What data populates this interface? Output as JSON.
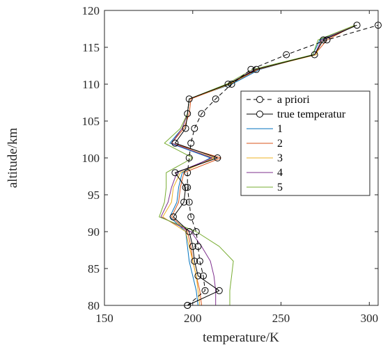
{
  "chart_data": {
    "type": "line",
    "title": "",
    "xlabel": "temperature/K",
    "ylabel": "altitude/km",
    "xlim": [
      150,
      305
    ],
    "ylim": [
      80,
      120
    ],
    "xticks": [
      150,
      200,
      250,
      300
    ],
    "yticks": [
      80,
      85,
      90,
      95,
      100,
      105,
      110,
      115,
      120
    ],
    "grid": false,
    "legend_position": "right",
    "series": [
      {
        "name": "a priori",
        "color": "#000000",
        "dash": "dashed",
        "marker": "circle",
        "points": [
          [
            197,
            80
          ],
          [
            207,
            82
          ],
          [
            206,
            84
          ],
          [
            204,
            86
          ],
          [
            203,
            88
          ],
          [
            202,
            90
          ],
          [
            199,
            92
          ],
          [
            198,
            94
          ],
          [
            197,
            96
          ],
          [
            197,
            98
          ],
          [
            198,
            100
          ],
          [
            199,
            102
          ],
          [
            201,
            104
          ],
          [
            205,
            106
          ],
          [
            213,
            108
          ],
          [
            222,
            110
          ],
          [
            233,
            112
          ],
          [
            253,
            114
          ],
          [
            276,
            116
          ],
          [
            305,
            118
          ]
        ]
      },
      {
        "name": "true temperatur",
        "color": "#000000",
        "dash": "solid",
        "marker": "circle",
        "points": [
          [
            197,
            80
          ],
          [
            215,
            82
          ],
          [
            203,
            84
          ],
          [
            201,
            86
          ],
          [
            200,
            88
          ],
          [
            198,
            90
          ],
          [
            189,
            92
          ],
          [
            195,
            94
          ],
          [
            196,
            96
          ],
          [
            190,
            98
          ],
          [
            214,
            100
          ],
          [
            190,
            102
          ],
          [
            196,
            104
          ],
          [
            197,
            106
          ],
          [
            198,
            108
          ],
          [
            220,
            110
          ],
          [
            236,
            112
          ],
          [
            269,
            114
          ],
          [
            274,
            116
          ],
          [
            293,
            118
          ]
        ]
      },
      {
        "name": "1",
        "color": "#0072BD",
        "dash": "solid",
        "marker": "none",
        "points": [
          [
            203,
            80
          ],
          [
            202,
            82
          ],
          [
            200,
            84
          ],
          [
            198,
            86
          ],
          [
            197,
            88
          ],
          [
            196,
            90
          ],
          [
            187,
            92
          ],
          [
            191,
            94
          ],
          [
            192,
            96
          ],
          [
            194,
            98
          ],
          [
            210,
            100
          ],
          [
            187,
            102
          ],
          [
            194,
            104
          ],
          [
            197,
            106
          ],
          [
            198,
            108
          ],
          [
            222,
            110
          ],
          [
            238,
            112
          ],
          [
            268,
            114
          ],
          [
            272,
            116
          ],
          [
            292,
            118
          ]
        ]
      },
      {
        "name": "2",
        "color": "#D95319",
        "dash": "solid",
        "marker": "none",
        "points": [
          [
            205,
            80
          ],
          [
            204,
            82
          ],
          [
            202,
            84
          ],
          [
            200,
            86
          ],
          [
            199,
            88
          ],
          [
            197,
            90
          ],
          [
            188,
            92
          ],
          [
            192,
            94
          ],
          [
            193,
            96
          ],
          [
            195,
            98
          ],
          [
            216,
            100
          ],
          [
            188,
            102
          ],
          [
            195,
            104
          ],
          [
            198,
            106
          ],
          [
            199,
            108
          ],
          [
            221,
            110
          ],
          [
            237,
            112
          ],
          [
            269,
            114
          ],
          [
            276,
            116
          ],
          [
            292,
            118
          ]
        ]
      },
      {
        "name": "3",
        "color": "#EDB120",
        "dash": "solid",
        "marker": "none",
        "points": [
          [
            204,
            80
          ],
          [
            203,
            82
          ],
          [
            202,
            84
          ],
          [
            200,
            86
          ],
          [
            198,
            88
          ],
          [
            196,
            90
          ],
          [
            183,
            92
          ],
          [
            188,
            94
          ],
          [
            189,
            96
          ],
          [
            193,
            98
          ],
          [
            212,
            100
          ],
          [
            188,
            102
          ],
          [
            194,
            104
          ],
          [
            197,
            106
          ],
          [
            198,
            108
          ],
          [
            221,
            110
          ],
          [
            236,
            112
          ],
          [
            270,
            114
          ],
          [
            273,
            116
          ],
          [
            292,
            118
          ]
        ]
      },
      {
        "name": "4",
        "color": "#7E2F8E",
        "dash": "solid",
        "marker": "none",
        "points": [
          [
            213,
            80
          ],
          [
            213,
            82
          ],
          [
            212,
            84
          ],
          [
            210,
            86
          ],
          [
            205,
            88
          ],
          [
            199,
            90
          ],
          [
            182,
            92
          ],
          [
            186,
            94
          ],
          [
            188,
            96
          ],
          [
            191,
            98
          ],
          [
            211,
            100
          ],
          [
            188,
            102
          ],
          [
            194,
            104
          ],
          [
            197,
            106
          ],
          [
            198,
            108
          ],
          [
            220,
            110
          ],
          [
            235,
            112
          ],
          [
            269,
            114
          ],
          [
            273,
            116
          ],
          [
            292,
            118
          ]
        ]
      },
      {
        "name": "5",
        "color": "#77AC30",
        "dash": "solid",
        "marker": "none",
        "points": [
          [
            221,
            80
          ],
          [
            221,
            82
          ],
          [
            222,
            84
          ],
          [
            223,
            86
          ],
          [
            215,
            88
          ],
          [
            202,
            90
          ],
          [
            181,
            92
          ],
          [
            184,
            94
          ],
          [
            185,
            96
          ],
          [
            185,
            98
          ],
          [
            200,
            100
          ],
          [
            184,
            102
          ],
          [
            193,
            104
          ],
          [
            197,
            106
          ],
          [
            198,
            108
          ],
          [
            219,
            110
          ],
          [
            234,
            112
          ],
          [
            268,
            114
          ],
          [
            271,
            116
          ],
          [
            292,
            118
          ]
        ]
      }
    ]
  }
}
